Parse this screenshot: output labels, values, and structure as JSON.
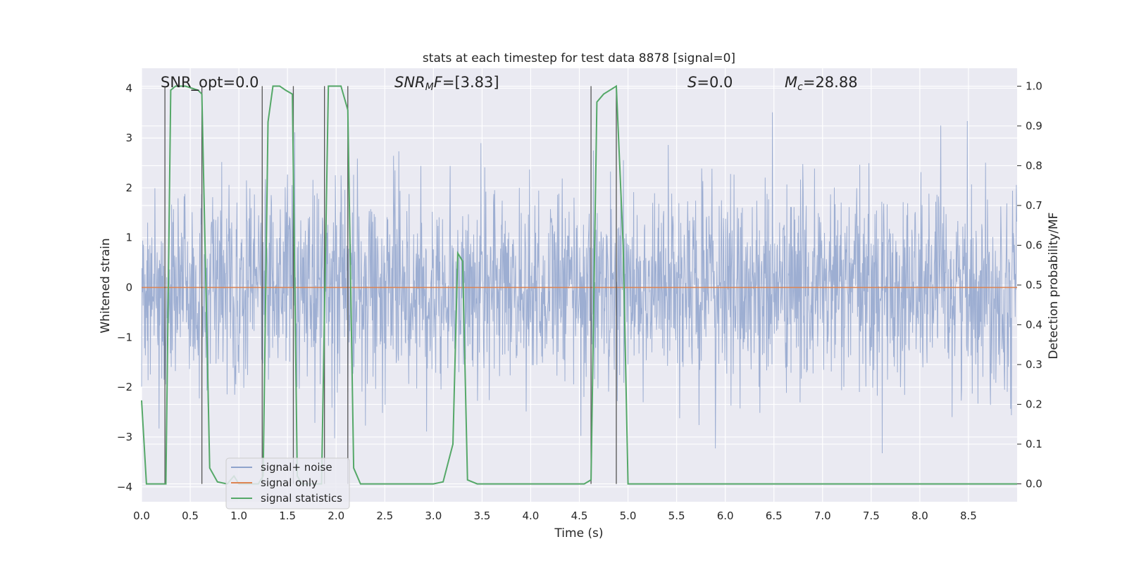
{
  "chart_data": {
    "type": "line",
    "title": "stats at each timestep for test data 8878 [signal=0]",
    "xlabel": "Time (s)",
    "ylabel": "Whitened strain",
    "y2label": "Detection probability/MF",
    "xlim": [
      0,
      9.0
    ],
    "ylim": [
      -4.3,
      4.4
    ],
    "y2lim": [
      -0.045,
      1.045
    ],
    "xticks": [
      0.0,
      0.5,
      1.0,
      1.5,
      2.0,
      2.5,
      3.0,
      3.5,
      4.0,
      4.5,
      5.0,
      5.5,
      6.0,
      6.5,
      7.0,
      7.5,
      8.0,
      8.5
    ],
    "xtick_labels": [
      "0.0",
      "0.5",
      "1.0",
      "1.5",
      "2.0",
      "2.5",
      "3.0",
      "3.5",
      "4.0",
      "4.5",
      "5.0",
      "5.5",
      "6.0",
      "6.5",
      "7.0",
      "7.5",
      "8.0",
      "8.5"
    ],
    "yticks": [
      -4,
      -3,
      -2,
      -1,
      0,
      1,
      2,
      3,
      4
    ],
    "ytick_labels": [
      "−4",
      "−3",
      "−2",
      "−1",
      "0",
      "1",
      "2",
      "3",
      "4"
    ],
    "y2ticks": [
      0.0,
      0.1,
      0.2,
      0.3,
      0.4,
      0.5,
      0.6,
      0.7,
      0.8,
      0.9,
      1.0
    ],
    "y2tick_labels": [
      "0.0",
      "0.1",
      "0.2",
      "0.3",
      "0.4",
      "0.5",
      "0.6",
      "0.7",
      "0.8",
      "0.9",
      "1.0"
    ],
    "grid": true,
    "legend_position": "bottom-left",
    "series": [
      {
        "name": "signal+ noise",
        "color": "#8fa3cc",
        "style": "noise",
        "sample_rate_hz": 256,
        "approx_sd": 1.0,
        "approx_range": [
          -3.5,
          3.8
        ]
      },
      {
        "name": "signal only",
        "color": "#dd8452",
        "x": [
          0,
          9.0
        ],
        "y": [
          0,
          0
        ]
      },
      {
        "name": "signal statistics",
        "color": "#55a868",
        "axis": "y2",
        "x": [
          0.0,
          0.05,
          0.25,
          0.3,
          0.35,
          0.45,
          0.58,
          0.62,
          0.7,
          0.78,
          0.88,
          0.95,
          1.0,
          1.2,
          1.25,
          1.3,
          1.35,
          1.42,
          1.48,
          1.55,
          1.6,
          1.65,
          1.7,
          1.8,
          1.85,
          1.92,
          2.05,
          2.12,
          2.18,
          2.25,
          2.35,
          3.0,
          3.1,
          3.2,
          3.25,
          3.3,
          3.35,
          3.45,
          4.55,
          4.62,
          4.68,
          4.75,
          4.88,
          4.95,
          5.0,
          9.0
        ],
        "y": [
          0.21,
          0.0,
          0.0,
          0.99,
          1.0,
          1.0,
          0.99,
          0.98,
          0.04,
          0.005,
          0.0,
          0.02,
          0.0,
          0.0,
          0.02,
          0.91,
          1.0,
          1.0,
          0.99,
          0.98,
          0.02,
          0.0,
          0.0,
          0.0,
          0.0,
          1.0,
          1.0,
          0.94,
          0.04,
          0.0,
          0.0,
          0.0,
          0.005,
          0.1,
          0.58,
          0.56,
          0.01,
          0.0,
          0.0,
          0.01,
          0.96,
          0.98,
          1.0,
          0.6,
          0.0,
          0.0
        ]
      }
    ],
    "vertical_markers": [
      0.24,
      0.62,
      1.24,
      1.56,
      1.88,
      2.12,
      4.62,
      4.88
    ],
    "annotations": [
      {
        "label": "SNR_opt",
        "value": "0.0"
      },
      {
        "label": "SNR_MF",
        "value": "[3.83]"
      },
      {
        "label": "S",
        "value": "0.0"
      },
      {
        "label": "M_c",
        "value": "28.88"
      }
    ]
  }
}
